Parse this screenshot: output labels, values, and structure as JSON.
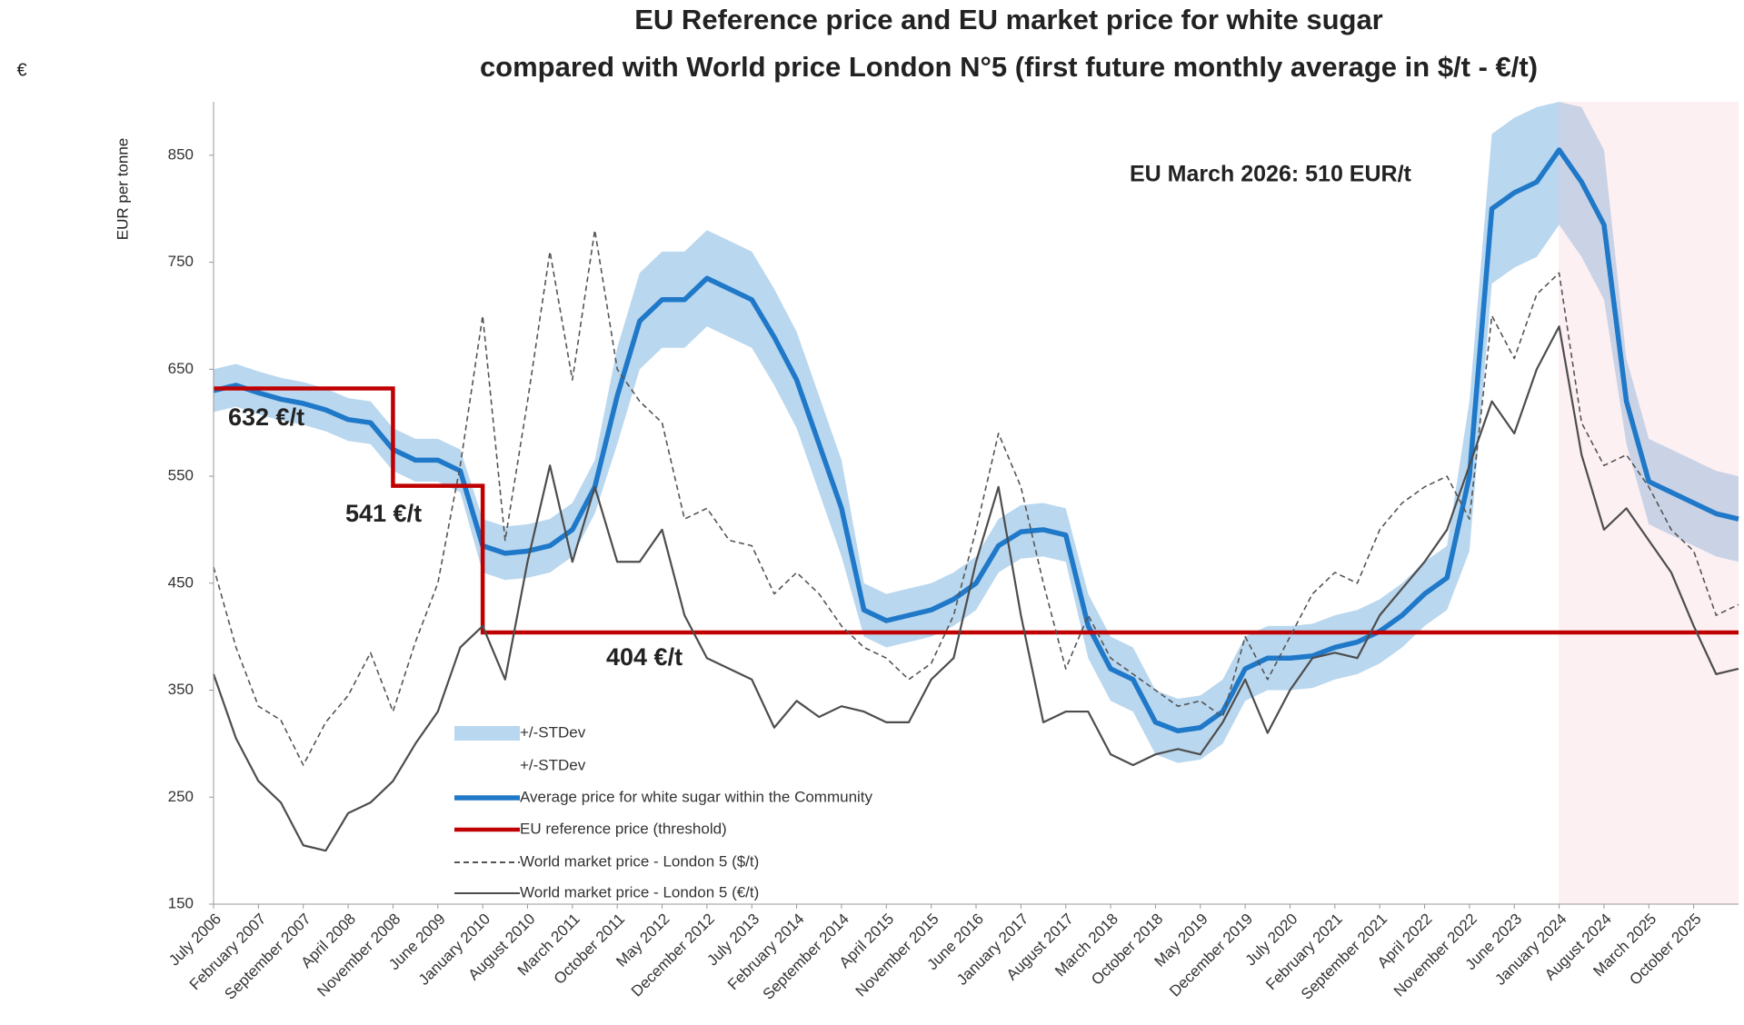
{
  "chart_data": {
    "type": "line",
    "title": "EU Reference price and EU market price for white sugar",
    "subtitle": "compared with World price London N°5 (first future monthly average in $/t - €/t)",
    "y_label": "EUR per tonne",
    "corner_mark": "€",
    "annotations": [
      "632 €/t",
      "541 €/t",
      "404 €/t",
      "EU March 2026: 510 EUR/t"
    ],
    "categories": [
      "July 2006",
      null,
      "February 2007",
      null,
      "September 2007",
      null,
      "April 2008",
      null,
      "November 2008",
      null,
      "June 2009",
      null,
      "January 2010",
      null,
      "August 2010",
      null,
      "March 2011",
      null,
      "October 2011",
      null,
      "May 2012",
      null,
      "December 2012",
      null,
      "July 2013",
      null,
      "February 2014",
      null,
      "September 2014",
      null,
      "April 2015",
      null,
      "November 2015",
      null,
      "June 2016",
      null,
      "January 2017",
      null,
      "August 2017",
      null,
      "March 2018",
      null,
      "October 2018",
      null,
      "May 2019",
      null,
      "December 2019",
      null,
      "July 2020",
      null,
      "February 2021",
      null,
      "September 2021",
      null,
      "April 2022",
      null,
      "November 2022",
      null,
      "June 2023",
      null,
      "January 2024",
      null,
      "August 2024",
      null,
      "March 2025",
      null,
      "October 2025",
      null,
      null
    ],
    "series": [
      {
        "name": "+/-STDev",
        "color": "#b9d7ef",
        "style": "area",
        "values": [
          650,
          655,
          648,
          642,
          638,
          632,
          623,
          620,
          595,
          585,
          585,
          575,
          510,
          503,
          505,
          510,
          525,
          565,
          670,
          740,
          760,
          760,
          780,
          770,
          760,
          725,
          685,
          625,
          565,
          450,
          440,
          445,
          450,
          460,
          475,
          510,
          523,
          525,
          520,
          440,
          400,
          390,
          350,
          342,
          345,
          360,
          400,
          410,
          410,
          412,
          420,
          425,
          435,
          450,
          470,
          485,
          620,
          870,
          885,
          895,
          900,
          895,
          855,
          660,
          585,
          575,
          565,
          555,
          550
        ]
      },
      {
        "name": "+/-STDev",
        "color": "#ffffff",
        "style": "area",
        "values": [
          610,
          615,
          608,
          602,
          598,
          592,
          583,
          580,
          555,
          545,
          545,
          535,
          460,
          453,
          455,
          460,
          475,
          515,
          580,
          650,
          670,
          670,
          690,
          680,
          670,
          635,
          595,
          535,
          475,
          400,
          390,
          395,
          400,
          410,
          425,
          460,
          473,
          475,
          470,
          380,
          340,
          330,
          290,
          282,
          285,
          300,
          340,
          350,
          350,
          352,
          360,
          365,
          375,
          390,
          410,
          425,
          480,
          730,
          745,
          755,
          785,
          755,
          715,
          580,
          505,
          495,
          485,
          475,
          470
        ]
      },
      {
        "name": "Average price for white sugar within the Community",
        "color": "#1f78c8",
        "style": "line",
        "values": [
          630,
          635,
          628,
          622,
          618,
          612,
          603,
          600,
          575,
          565,
          565,
          555,
          485,
          478,
          480,
          485,
          500,
          540,
          625,
          695,
          715,
          715,
          735,
          725,
          715,
          680,
          640,
          580,
          520,
          425,
          415,
          420,
          425,
          435,
          450,
          485,
          498,
          500,
          495,
          410,
          370,
          360,
          320,
          312,
          315,
          330,
          370,
          380,
          380,
          382,
          390,
          395,
          405,
          420,
          440,
          455,
          550,
          800,
          815,
          825,
          855,
          825,
          785,
          620,
          545,
          535,
          525,
          515,
          510
        ]
      },
      {
        "name": "EU reference price (threshold)",
        "color": "#c00000",
        "style": "step",
        "values": [
          632,
          632,
          632,
          632,
          632,
          632,
          632,
          632,
          541,
          541,
          541,
          541,
          404,
          404,
          404,
          404,
          404,
          404,
          404,
          404,
          404,
          404,
          404,
          404,
          404,
          404,
          404,
          404,
          404,
          404,
          404,
          404,
          404,
          404,
          404,
          404,
          404,
          404,
          404,
          404,
          404,
          404,
          404,
          404,
          404,
          404,
          404,
          404,
          404,
          404,
          404,
          404,
          404,
          404,
          404,
          404,
          404,
          404,
          404,
          404,
          404,
          404,
          404,
          404,
          404,
          404,
          404,
          404,
          404
        ]
      },
      {
        "name": "World market price - London 5 ($/t)",
        "color": "#555555",
        "style": "dashed",
        "values": [
          465,
          390,
          335,
          322,
          280,
          320,
          345,
          385,
          330,
          395,
          450,
          560,
          700,
          490,
          620,
          760,
          640,
          780,
          650,
          620,
          600,
          510,
          520,
          490,
          485,
          440,
          460,
          440,
          410,
          390,
          380,
          360,
          375,
          420,
          500,
          590,
          540,
          450,
          370,
          420,
          380,
          365,
          350,
          335,
          340,
          325,
          400,
          360,
          400,
          440,
          460,
          450,
          500,
          525,
          540,
          550,
          510,
          700,
          660,
          720,
          740,
          600,
          560,
          570,
          540,
          500,
          480,
          420,
          430
        ]
      },
      {
        "name": "World market price - London 5 (€/t)",
        "color": "#4d4d4d",
        "style": "line",
        "values": [
          365,
          305,
          265,
          245,
          205,
          200,
          235,
          245,
          265,
          300,
          330,
          390,
          410,
          360,
          470,
          560,
          470,
          540,
          470,
          470,
          500,
          420,
          380,
          370,
          360,
          315,
          340,
          325,
          335,
          330,
          320,
          320,
          360,
          380,
          470,
          540,
          420,
          320,
          330,
          330,
          290,
          280,
          290,
          295,
          290,
          320,
          360,
          310,
          350,
          380,
          385,
          380,
          420,
          445,
          470,
          500,
          560,
          620,
          590,
          650,
          690,
          570,
          500,
          520,
          490,
          460,
          410,
          365,
          370
        ]
      }
    ],
    "ylim": [
      150,
      900
    ],
    "yticks": [
      150,
      250,
      350,
      450,
      550,
      650,
      750,
      850
    ],
    "grid": false
  }
}
